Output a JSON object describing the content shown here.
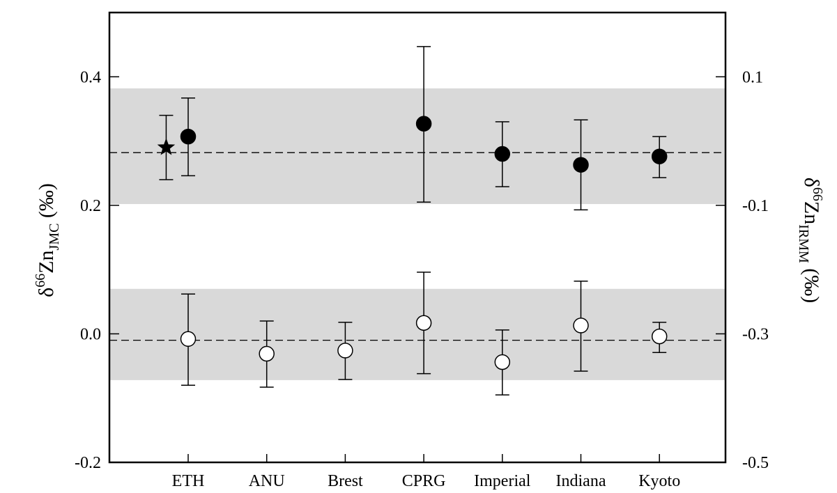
{
  "chart_data": {
    "type": "scatter",
    "categories": [
      "ETH",
      "ANU",
      "Brest",
      "CPRG",
      "Imperial",
      "Indiana",
      "Kyoto"
    ],
    "ylim": [
      -0.2,
      0.5
    ],
    "y_ticks": [
      "-0.2",
      "0.0",
      "0.2",
      "0.4"
    ],
    "y_right_ticks": [
      "-0.5",
      "-0.3",
      "-0.1",
      "0.1"
    ],
    "ylabel_left": {
      "delta": "δ",
      "mass": "66",
      "element": "Zn",
      "subscript": "JMC",
      "unit": " (‰)"
    },
    "ylabel_right": {
      "delta": "δ",
      "mass": "66",
      "element": "Zn",
      "subscript": "IRMM",
      "unit": " (‰)"
    },
    "grid": false,
    "bands": [
      {
        "y0": 0.202,
        "y1": 0.382,
        "color": "#d9d9d9"
      },
      {
        "y0": -0.072,
        "y1": 0.07,
        "color": "#d9d9d9"
      }
    ],
    "reference_lines": [
      {
        "y": 0.282
      },
      {
        "y": -0.01
      }
    ],
    "series": [
      {
        "marker": "star",
        "fill": "#000000",
        "points": [
          {
            "category": "ETH",
            "offset": -0.28,
            "y": 0.29,
            "low": 0.24,
            "high": 0.34
          }
        ]
      },
      {
        "marker": "circle",
        "fill": "#000000",
        "points": [
          {
            "category": "ETH",
            "y": 0.307,
            "low": 0.246,
            "high": 0.367
          },
          {
            "category": "CPRG",
            "y": 0.327,
            "low": 0.205,
            "high": 0.447
          },
          {
            "category": "Imperial",
            "y": 0.28,
            "low": 0.229,
            "high": 0.33
          },
          {
            "category": "Indiana",
            "y": 0.263,
            "low": 0.193,
            "high": 0.333
          },
          {
            "category": "Kyoto",
            "y": 0.276,
            "low": 0.243,
            "high": 0.307
          }
        ]
      },
      {
        "marker": "circle",
        "fill": "#ffffff",
        "points": [
          {
            "category": "ETH",
            "y": -0.008,
            "low": -0.08,
            "high": 0.062
          },
          {
            "category": "ANU",
            "y": -0.031,
            "low": -0.083,
            "high": 0.02
          },
          {
            "category": "Brest",
            "y": -0.026,
            "low": -0.071,
            "high": 0.018
          },
          {
            "category": "CPRG",
            "y": 0.017,
            "low": -0.062,
            "high": 0.096
          },
          {
            "category": "Imperial",
            "y": -0.044,
            "low": -0.095,
            "high": 0.006
          },
          {
            "category": "Indiana",
            "y": 0.013,
            "low": -0.058,
            "high": 0.082
          },
          {
            "category": "Kyoto",
            "y": -0.004,
            "low": -0.029,
            "high": 0.018
          }
        ]
      }
    ]
  }
}
